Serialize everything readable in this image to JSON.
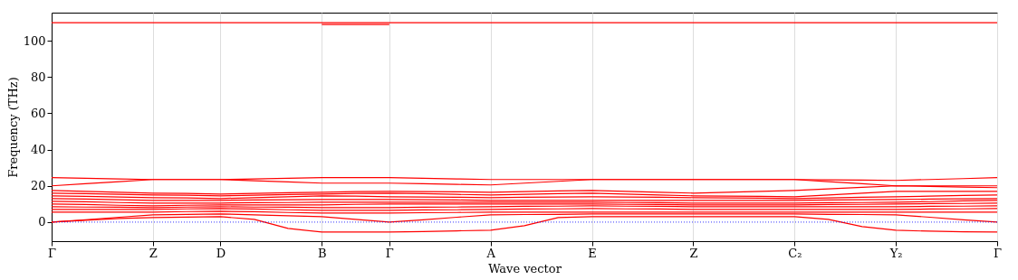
{
  "chart_data": {
    "type": "line",
    "xlabel": "Wave vector",
    "ylabel": "Frequency (THz)",
    "ylim": [
      -10.5,
      115.5
    ],
    "yticks": [
      0,
      20,
      40,
      60,
      80,
      100
    ],
    "categories": [
      "Γ",
      null,
      null,
      "Z",
      null,
      "D",
      null,
      null,
      "B",
      null,
      "Γ",
      null,
      null,
      "A",
      null,
      null,
      "E",
      null,
      null,
      "Z",
      null,
      null,
      "C₂",
      null,
      null,
      "Y₂",
      null,
      null,
      "Γ"
    ],
    "grid": "x",
    "legend": false,
    "ref_lines": [
      {
        "axis": "y",
        "value": 0,
        "color": "#0000ff",
        "line_style": "dotted"
      }
    ],
    "series": [
      {
        "color": "#ff0000",
        "values": [
          110,
          110,
          110,
          110,
          110,
          110,
          110,
          110,
          110,
          110,
          110,
          110,
          110,
          110,
          110,
          110,
          110,
          110,
          110,
          110,
          110,
          110,
          110,
          110,
          110,
          110,
          110,
          110,
          110
        ]
      },
      {
        "color": "#ff0000",
        "values": [
          null,
          null,
          null,
          null,
          null,
          null,
          null,
          null,
          109,
          109,
          109,
          null,
          null,
          null,
          null,
          null,
          null,
          null,
          null,
          null,
          null,
          null,
          null,
          null,
          null,
          null,
          null,
          null,
          null
        ]
      },
      {
        "color": "#ff0000",
        "values": [
          24.5,
          24.2,
          23.8,
          23.5,
          23.5,
          23.5,
          23.8,
          24.2,
          24.5,
          24.5,
          24.5,
          24.2,
          23.8,
          23.5,
          23.5,
          23.5,
          23.5,
          23.5,
          23.5,
          23.5,
          23.5,
          23.5,
          23.5,
          23.3,
          23.2,
          23,
          23.5,
          24,
          24.5
        ]
      },
      {
        "color": "#ff0000",
        "values": [
          20,
          21.2,
          22.3,
          23.5,
          23.5,
          23.5,
          22.8,
          22.2,
          21.5,
          21.5,
          21.5,
          21.2,
          20.8,
          20.5,
          21.5,
          22.5,
          23.5,
          23.5,
          23.5,
          23.5,
          23.5,
          23.5,
          23.5,
          22.3,
          21.2,
          20,
          20,
          20,
          20
        ]
      },
      {
        "color": "#ff0000",
        "values": [
          17.5,
          17,
          16.5,
          16,
          15.8,
          15.5,
          15.8,
          16.2,
          16.5,
          16.8,
          17,
          16.8,
          16.7,
          16.5,
          16.8,
          17.2,
          17.5,
          17,
          16.5,
          16,
          16.5,
          17,
          17.5,
          18.3,
          19.2,
          20,
          19.7,
          19.3,
          19
        ]
      },
      {
        "color": "#ff0000",
        "values": [
          16,
          15.7,
          15.3,
          15,
          14.8,
          14.5,
          14.8,
          15.2,
          15.5,
          15.8,
          16,
          15.7,
          15.3,
          15,
          15.3,
          15.7,
          16,
          15.5,
          15,
          14.5,
          14.3,
          14.2,
          14,
          15,
          16,
          17,
          17,
          17,
          17
        ]
      },
      {
        "color": "#ff0000",
        "values": [
          14.5,
          14.2,
          13.8,
          13.5,
          13.3,
          13,
          13.5,
          14,
          14.5,
          14.3,
          14,
          13.8,
          13.7,
          13.5,
          13.7,
          13.8,
          14,
          13.8,
          13.7,
          13.5,
          13.3,
          13.2,
          13,
          13.3,
          13.7,
          14,
          14.3,
          14.7,
          15
        ]
      },
      {
        "color": "#ff0000",
        "values": [
          13,
          12.7,
          12.3,
          12,
          12,
          12,
          12.2,
          12.3,
          12.5,
          12.5,
          12.5,
          12.3,
          12.2,
          12,
          12,
          12,
          12,
          12,
          12,
          12,
          12,
          12,
          12,
          12.2,
          12.3,
          12.5,
          12.7,
          12.8,
          13
        ]
      },
      {
        "color": "#ff0000",
        "values": [
          11.5,
          11.2,
          10.8,
          10.5,
          10.5,
          10.5,
          10.7,
          10.8,
          11,
          11,
          11,
          11,
          11,
          11,
          11,
          11,
          11,
          10.8,
          10.7,
          10.5,
          10.5,
          10.5,
          10.5,
          10.7,
          10.8,
          11,
          11.3,
          11.7,
          12
        ]
      },
      {
        "color": "#ff0000",
        "values": [
          10,
          9.7,
          9.3,
          9,
          9.3,
          9.5,
          9.5,
          9.5,
          9.5,
          9.8,
          10,
          10,
          10,
          10,
          10,
          10,
          10,
          9.8,
          9.7,
          9.5,
          9.5,
          9.5,
          9.5,
          9.7,
          9.8,
          10,
          10.2,
          10.3,
          10.5
        ]
      },
      {
        "color": "#ff0000",
        "values": [
          8.5,
          8.3,
          8.2,
          8,
          8.3,
          8.5,
          8.3,
          8.2,
          8,
          8,
          8,
          8.2,
          8.3,
          8.5,
          8.7,
          8.8,
          9,
          8.8,
          8.7,
          8.5,
          8.5,
          8.5,
          8.5,
          8.5,
          8.5,
          8.5,
          8.7,
          8.8,
          9
        ]
      },
      {
        "color": "#ff0000",
        "values": [
          7,
          7,
          7,
          7,
          7.3,
          7.5,
          7.2,
          6.8,
          6.5,
          6.5,
          6.5,
          6.7,
          6.8,
          7,
          7.2,
          7.3,
          7.5,
          7.3,
          7.2,
          7,
          7,
          7,
          7,
          7,
          7,
          7,
          7.2,
          7.3,
          7.5
        ]
      },
      {
        "color": "#ff0000",
        "values": [
          5.5,
          5.5,
          5.5,
          5.5,
          5.8,
          6,
          5.7,
          5.3,
          5,
          5,
          5,
          5.2,
          5.3,
          5.5,
          5.5,
          5.5,
          5.5,
          5.5,
          5.5,
          5.5,
          5.5,
          5.5,
          5.5,
          5.5,
          5.5,
          5.5,
          5.5,
          5.5,
          5.5
        ]
      },
      {
        "color": "#ff0000",
        "values": [
          0,
          1.3,
          2.7,
          4,
          4.3,
          4.5,
          4,
          3.5,
          3,
          1.5,
          0,
          1.3,
          2.7,
          4,
          4.2,
          4.3,
          4.5,
          4.5,
          4.5,
          4.5,
          4.5,
          4.5,
          4.5,
          4.3,
          4.2,
          4,
          2.7,
          1.3,
          0
        ]
      },
      {
        "color": "#ff0000",
        "values": [
          0,
          1,
          2,
          2.5,
          2.8,
          3,
          1.5,
          -3.5,
          -5.5,
          -5.5,
          -5.5,
          -5.2,
          -4.8,
          -4.5,
          -2,
          2.5,
          3,
          3,
          3,
          3,
          3,
          3,
          3,
          1.5,
          -2.5,
          -4.5,
          -5,
          -5.3,
          -5.5
        ]
      }
    ]
  }
}
